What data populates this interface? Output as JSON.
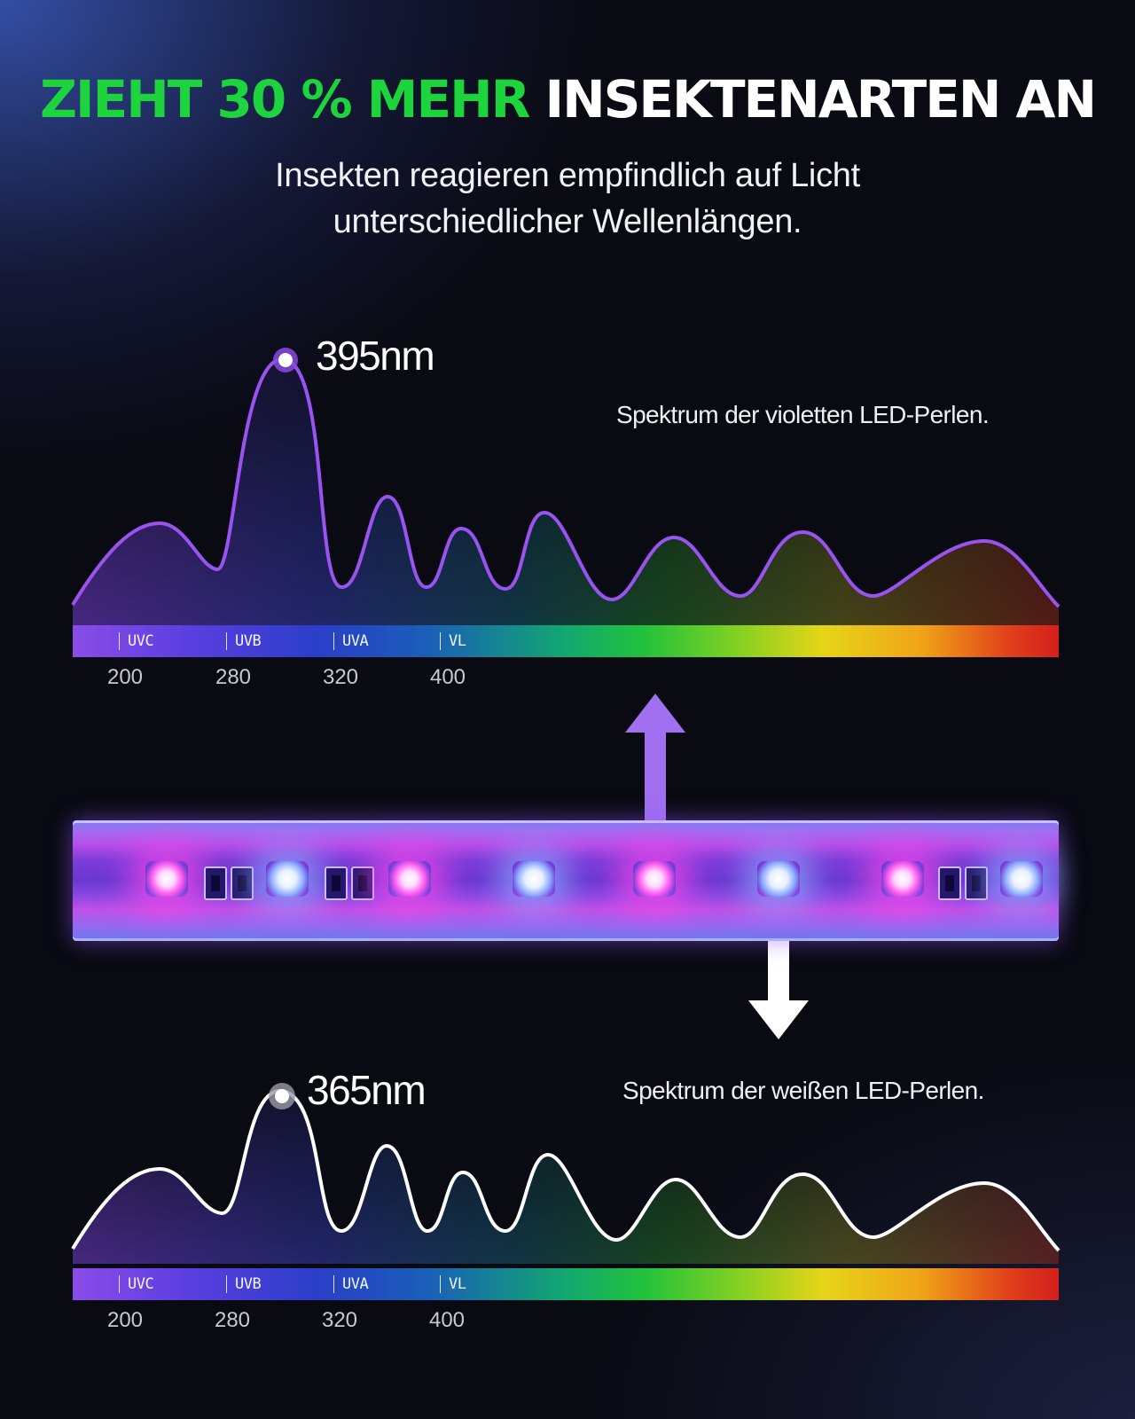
{
  "headline": {
    "highlight": "ZIEHT 30 % MEHR",
    "rest": "INSEKTENARTEN AN",
    "highlight_color": "#1ed43c"
  },
  "subtitle": {
    "line1": "Insekten reagieren empfindlich auf Licht",
    "line2": "unterschiedlicher Wellenlängen."
  },
  "violet_spectrum": {
    "peak_label": "395nm",
    "caption": "Spektrum der violetten LED-Perlen.",
    "line_color": "#9a52f0",
    "bands": [
      "UVC",
      "UVB",
      "UVA",
      "VL"
    ],
    "ticks": [
      "200",
      "280",
      "320",
      "400"
    ]
  },
  "white_spectrum": {
    "peak_label": "365nm",
    "caption": "Spektrum der weißen LED-Perlen.",
    "line_color": "#ffffff",
    "bands": [
      "UVC",
      "UVB",
      "UVA",
      "VL"
    ],
    "ticks": [
      "200",
      "280",
      "320",
      "400"
    ]
  },
  "led_strip": {
    "led_colors": [
      "pink",
      "white",
      "pink",
      "white",
      "pink",
      "white",
      "pink",
      "white"
    ],
    "arrow_up_color": "#a070f0",
    "arrow_down_color": "#ffffff"
  }
}
